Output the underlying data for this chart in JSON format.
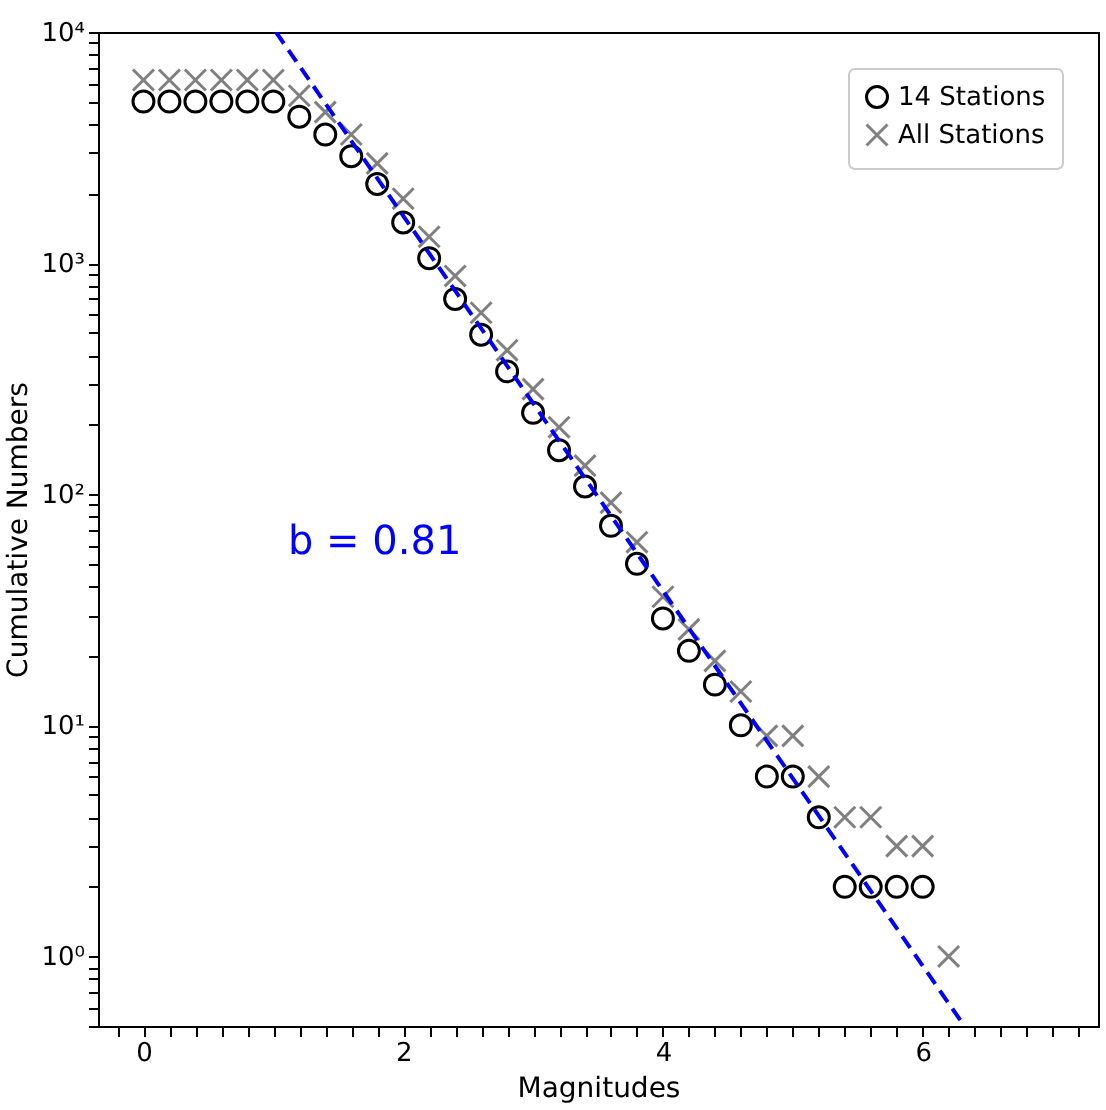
{
  "chart_data": {
    "type": "scatter",
    "xlabel": "Magnitudes",
    "ylabel": "Cumulative Numbers",
    "log": "y",
    "grid": false,
    "legend": "top right",
    "xlim": [
      -0.35,
      7.35
    ],
    "ylim": [
      0.5,
      10000
    ],
    "xticks": [
      {
        "value": -0.2,
        "label": null
      },
      0,
      {
        "value": 0.2,
        "label": null
      },
      {
        "value": 0.4,
        "label": null
      },
      {
        "value": 0.6,
        "label": null
      },
      {
        "value": 0.8,
        "label": null
      },
      {
        "value": 1,
        "label": null
      },
      {
        "value": 1.2,
        "label": null
      },
      {
        "value": 1.4,
        "label": null
      },
      {
        "value": 1.6,
        "label": null
      },
      {
        "value": 1.8,
        "label": null
      },
      2,
      {
        "value": 2.2,
        "label": null
      },
      {
        "value": 2.4,
        "label": null
      },
      {
        "value": 2.6,
        "label": null
      },
      {
        "value": 2.8,
        "label": null
      },
      {
        "value": 3,
        "label": null
      },
      {
        "value": 3.2,
        "label": null
      },
      {
        "value": 3.4,
        "label": null
      },
      {
        "value": 3.6,
        "label": null
      },
      {
        "value": 3.8,
        "label": null
      },
      4,
      {
        "value": 4.2,
        "label": null
      },
      {
        "value": 4.4,
        "label": null
      },
      {
        "value": 4.6,
        "label": null
      },
      {
        "value": 4.8,
        "label": null
      },
      {
        "value": 5,
        "label": null
      },
      {
        "value": 5.2,
        "label": null
      },
      {
        "value": 5.4,
        "label": null
      },
      {
        "value": 5.6,
        "label": null
      },
      {
        "value": 5.8,
        "label": null
      },
      6,
      {
        "value": 6.2,
        "label": null
      },
      {
        "value": 6.4,
        "label": null
      },
      {
        "value": 6.6,
        "label": null
      },
      {
        "value": 6.8,
        "label": null
      },
      {
        "value": 7,
        "label": null
      },
      {
        "value": 7.2,
        "label": null
      }
    ],
    "yticks": [
      {
        "value": 0.5,
        "label": null
      },
      {
        "value": 0.6,
        "label": null
      },
      {
        "value": 0.7,
        "label": null
      },
      {
        "value": 0.8,
        "label": null
      },
      {
        "value": 0.9,
        "label": null
      },
      {
        "value": 1,
        "label": "10⁰"
      },
      {
        "value": 2,
        "label": null
      },
      {
        "value": 3,
        "label": null
      },
      {
        "value": 4,
        "label": null
      },
      {
        "value": 5,
        "label": null
      },
      {
        "value": 6,
        "label": null
      },
      {
        "value": 7,
        "label": null
      },
      {
        "value": 8,
        "label": null
      },
      {
        "value": 9,
        "label": null
      },
      {
        "value": 10,
        "label": "10¹"
      },
      {
        "value": 20,
        "label": null
      },
      {
        "value": 30,
        "label": null
      },
      {
        "value": 40,
        "label": null
      },
      {
        "value": 50,
        "label": null
      },
      {
        "value": 60,
        "label": null
      },
      {
        "value": 70,
        "label": null
      },
      {
        "value": 80,
        "label": null
      },
      {
        "value": 90,
        "label": null
      },
      {
        "value": 100,
        "label": "10²"
      },
      {
        "value": 200,
        "label": null
      },
      {
        "value": 300,
        "label": null
      },
      {
        "value": 400,
        "label": null
      },
      {
        "value": 500,
        "label": null
      },
      {
        "value": 600,
        "label": null
      },
      {
        "value": 700,
        "label": null
      },
      {
        "value": 800,
        "label": null
      },
      {
        "value": 900,
        "label": null
      },
      {
        "value": 1000,
        "label": "10³"
      },
      {
        "value": 2000,
        "label": null
      },
      {
        "value": 3000,
        "label": null
      },
      {
        "value": 4000,
        "label": null
      },
      {
        "value": 5000,
        "label": null
      },
      {
        "value": 6000,
        "label": null
      },
      {
        "value": 7000,
        "label": null
      },
      {
        "value": 8000,
        "label": null
      },
      {
        "value": 9000,
        "label": null
      },
      {
        "value": 10000,
        "label": "10⁴"
      }
    ],
    "annotations": [
      "b = 0.81"
    ],
    "series": [
      {
        "name": "14 Stations",
        "marker": "circle",
        "color": "#000000",
        "x": [
          0,
          0.2,
          0.4,
          0.6,
          0.8,
          1.0,
          1.2,
          1.4,
          1.6,
          1.8,
          2.0,
          2.2,
          2.4,
          2.6,
          2.8,
          3.0,
          3.2,
          3.4,
          3.6,
          3.8,
          4.0,
          4.2,
          4.4,
          4.6,
          4.8,
          5.0,
          5.2,
          5.4,
          5.6,
          5.8,
          6.0
        ],
        "values": [
          5000,
          5000,
          5000,
          5000,
          5000,
          5000,
          4300,
          3600,
          2900,
          2200,
          1500,
          1050,
          700,
          490,
          340,
          225,
          155,
          108,
          73,
          50,
          29,
          21,
          15,
          10,
          6,
          6,
          4,
          2,
          2,
          2,
          2
        ]
      },
      {
        "name": "All Stations",
        "marker": "cross",
        "color": "#808080",
        "x": [
          0,
          0.2,
          0.4,
          0.6,
          0.8,
          1.0,
          1.2,
          1.4,
          1.6,
          1.8,
          2.0,
          2.2,
          2.4,
          2.6,
          2.8,
          3.0,
          3.2,
          3.4,
          3.6,
          3.8,
          4.0,
          4.2,
          4.4,
          4.6,
          4.8,
          5.0,
          5.2,
          5.4,
          5.6,
          5.8,
          6.0,
          6.2
        ],
        "values": [
          6200,
          6200,
          6200,
          6200,
          6200,
          6200,
          5300,
          4500,
          3600,
          2700,
          1900,
          1300,
          880,
          610,
          420,
          285,
          195,
          133,
          92,
          62,
          36,
          26,
          19,
          14,
          9,
          9,
          6,
          4,
          4,
          3,
          3,
          1
        ]
      },
      {
        "type": "line",
        "line_style": "dashed",
        "color": "#0000ff",
        "x": [
          1.02,
          6.3
        ],
        "values": [
          10000,
          0.52
        ]
      }
    ]
  }
}
